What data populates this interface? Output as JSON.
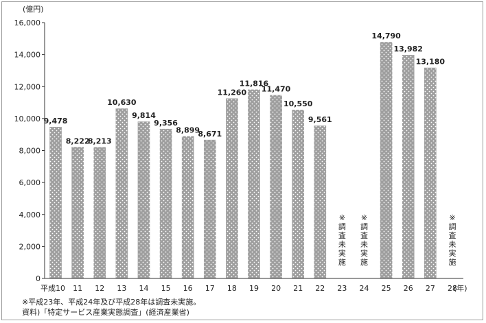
{
  "chart_data": {
    "type": "bar",
    "ylabel": "(億円)",
    "x_unit": "(年)",
    "ylim": [
      0,
      16000
    ],
    "yticks": [
      0,
      2000,
      4000,
      6000,
      8000,
      10000,
      12000,
      14000,
      16000
    ],
    "ytick_labels": [
      "0",
      "2,000",
      "4,000",
      "6,000",
      "8,000",
      "10,000",
      "12,000",
      "14,000",
      "16,000"
    ],
    "grid": false,
    "categories": [
      "平成10",
      "11",
      "12",
      "13",
      "14",
      "15",
      "16",
      "17",
      "18",
      "19",
      "20",
      "21",
      "22",
      "23",
      "24",
      "25",
      "26",
      "27",
      "28"
    ],
    "values": [
      9478,
      8222,
      8213,
      10630,
      9814,
      9356,
      8899,
      8671,
      11260,
      11816,
      11470,
      10550,
      9561,
      null,
      null,
      14790,
      13982,
      13180,
      null
    ],
    "value_labels": [
      "9,478",
      "8,222",
      "8,213",
      "10,630",
      "9,814",
      "9,356",
      "8,899",
      "8,671",
      "11,260",
      "11,816",
      "11,470",
      "10,550",
      "9,561",
      "",
      "",
      "14,790",
      "13,982",
      "13,180",
      ""
    ],
    "missing_note": [
      "※",
      "調",
      "査",
      "未",
      "実",
      "施"
    ],
    "bar_color": "#9e9e9e"
  },
  "footnotes": {
    "note1": "※平成23年、平成24年及び平成28年は調査未実施。",
    "note2": "資料)「特定サービス産業実態調査」(経済産業省)"
  }
}
